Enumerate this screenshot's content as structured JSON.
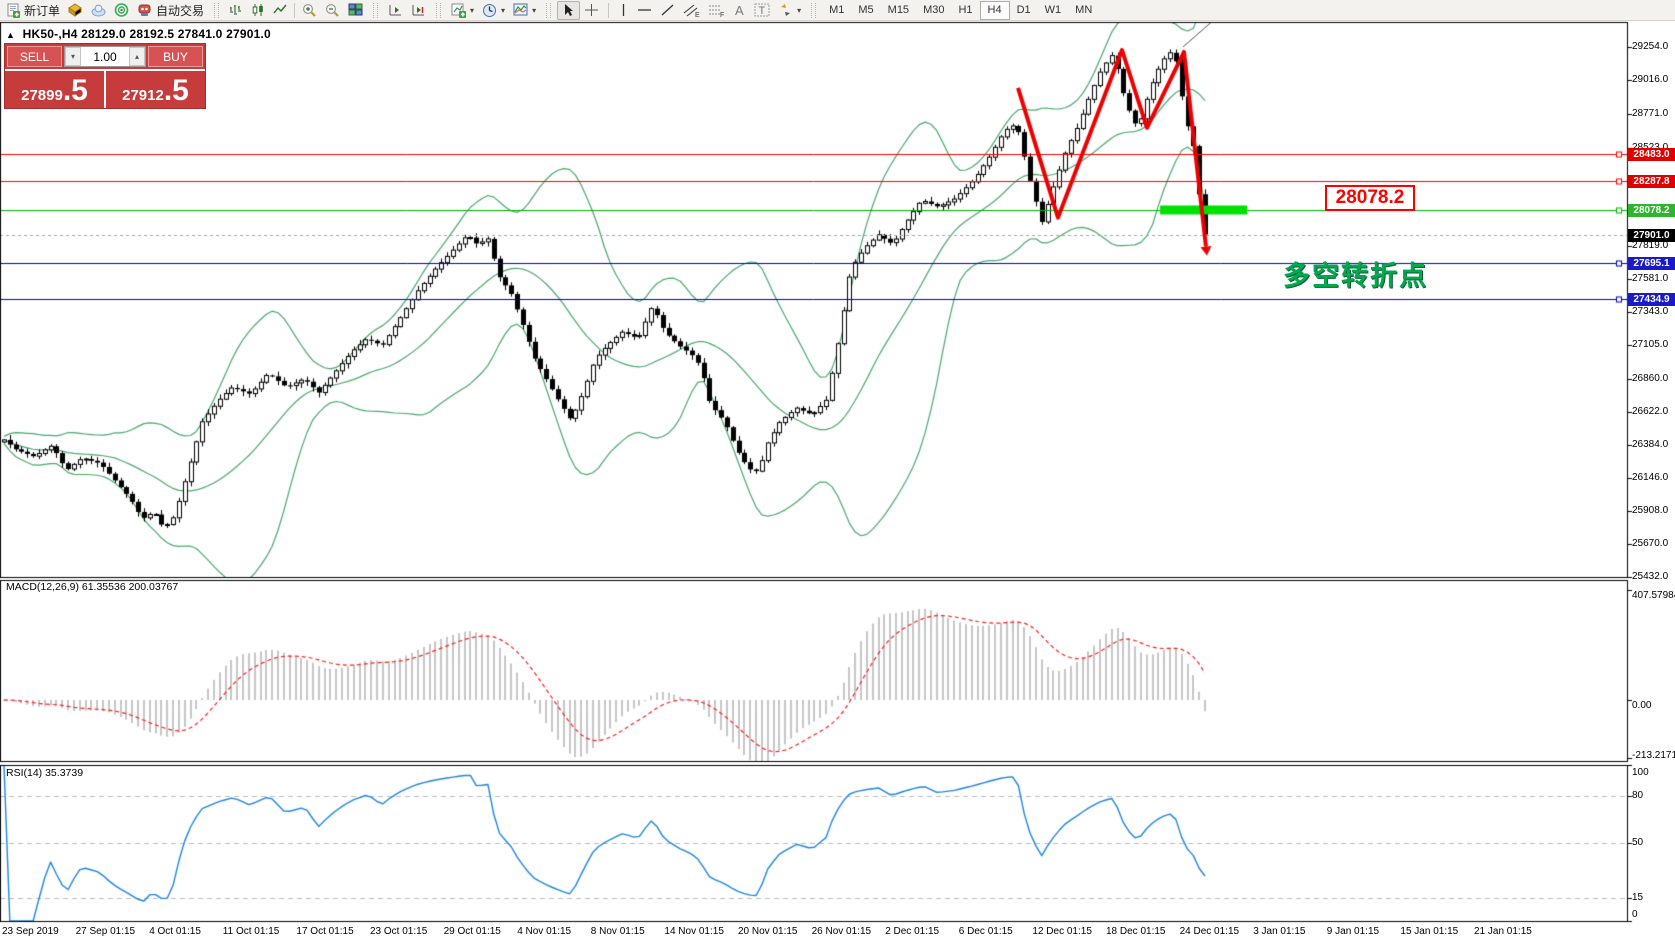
{
  "toolbar": {
    "new_order_label": "新订单",
    "algo_trading_label": "自动交易",
    "timeframes": [
      {
        "label": "M1"
      },
      {
        "label": "M5"
      },
      {
        "label": "M15"
      },
      {
        "label": "M30"
      },
      {
        "label": "H1"
      },
      {
        "label": "H4",
        "active": true
      },
      {
        "label": "D1"
      },
      {
        "label": "W1"
      },
      {
        "label": "MN"
      }
    ],
    "dropdown_glyph": "▾"
  },
  "chart_header": {
    "collapse_glyph": "▲",
    "symbol_period": "HK50-,H4",
    "ohlc_text": "28129.0 28192.5 27841.0 27901.0"
  },
  "trade_panel": {
    "sell_label": "SELL",
    "buy_label": "BUY",
    "volume": "1.00",
    "decrease_glyph": "▾",
    "increase_glyph": "▴",
    "bid_int": "27899",
    "bid_frac": ".5",
    "ask_int": "27912",
    "ask_frac": ".5"
  },
  "chart_data": {
    "type": "candlestick",
    "symbol": "HK50-",
    "period": "H4",
    "ohlc_current": {
      "open": 28129.0,
      "high": 28192.5,
      "low": 27841.0,
      "close": 27901.0
    },
    "price_axis": {
      "min": 25431,
      "max": 29434,
      "ticks": [
        29254.0,
        29016.0,
        28771.0,
        28523.0,
        28059.0,
        27819.0,
        27581.0,
        27343.0,
        27105.0,
        26860.0,
        26622.0,
        26384.0,
        26146.0,
        25908.0,
        25670.0,
        25432.0
      ]
    },
    "price_keyframes": [
      [
        0.0,
        26420
      ],
      [
        0.01,
        26350
      ],
      [
        0.025,
        26300
      ],
      [
        0.04,
        26380
      ],
      [
        0.052,
        26200
      ],
      [
        0.065,
        26290
      ],
      [
        0.08,
        26250
      ],
      [
        0.095,
        26100
      ],
      [
        0.105,
        26000
      ],
      [
        0.115,
        25850
      ],
      [
        0.125,
        25900
      ],
      [
        0.133,
        25780
      ],
      [
        0.142,
        25870
      ],
      [
        0.155,
        26250
      ],
      [
        0.165,
        26550
      ],
      [
        0.178,
        26700
      ],
      [
        0.19,
        26800
      ],
      [
        0.205,
        26750
      ],
      [
        0.22,
        26900
      ],
      [
        0.235,
        26800
      ],
      [
        0.25,
        26860
      ],
      [
        0.262,
        26760
      ],
      [
        0.275,
        26900
      ],
      [
        0.29,
        27060
      ],
      [
        0.302,
        27150
      ],
      [
        0.315,
        27100
      ],
      [
        0.33,
        27300
      ],
      [
        0.345,
        27500
      ],
      [
        0.36,
        27660
      ],
      [
        0.375,
        27800
      ],
      [
        0.386,
        27900
      ],
      [
        0.394,
        27830
      ],
      [
        0.403,
        27870
      ],
      [
        0.412,
        27600
      ],
      [
        0.422,
        27480
      ],
      [
        0.432,
        27250
      ],
      [
        0.442,
        27000
      ],
      [
        0.452,
        26850
      ],
      [
        0.462,
        26700
      ],
      [
        0.472,
        26560
      ],
      [
        0.482,
        26760
      ],
      [
        0.492,
        27000
      ],
      [
        0.502,
        27100
      ],
      [
        0.515,
        27200
      ],
      [
        0.528,
        27150
      ],
      [
        0.54,
        27390
      ],
      [
        0.55,
        27200
      ],
      [
        0.562,
        27100
      ],
      [
        0.572,
        27040
      ],
      [
        0.58,
        26950
      ],
      [
        0.588,
        26680
      ],
      [
        0.6,
        26550
      ],
      [
        0.61,
        26350
      ],
      [
        0.62,
        26210
      ],
      [
        0.628,
        26190
      ],
      [
        0.636,
        26400
      ],
      [
        0.646,
        26550
      ],
      [
        0.66,
        26650
      ],
      [
        0.673,
        26600
      ],
      [
        0.685,
        26710
      ],
      [
        0.695,
        27150
      ],
      [
        0.705,
        27650
      ],
      [
        0.716,
        27800
      ],
      [
        0.728,
        27900
      ],
      [
        0.74,
        27830
      ],
      [
        0.752,
        28000
      ],
      [
        0.764,
        28150
      ],
      [
        0.778,
        28100
      ],
      [
        0.792,
        28160
      ],
      [
        0.808,
        28300
      ],
      [
        0.822,
        28480
      ],
      [
        0.833,
        28650
      ],
      [
        0.843,
        28700
      ],
      [
        0.854,
        28300
      ],
      [
        0.864,
        27990
      ],
      [
        0.874,
        28250
      ],
      [
        0.884,
        28500
      ],
      [
        0.894,
        28680
      ],
      [
        0.904,
        28900
      ],
      [
        0.914,
        29100
      ],
      [
        0.924,
        29210
      ],
      [
        0.934,
        28850
      ],
      [
        0.944,
        28660
      ],
      [
        0.954,
        28950
      ],
      [
        0.964,
        29150
      ],
      [
        0.974,
        29240
      ],
      [
        0.984,
        28720
      ],
      [
        0.99,
        28560
      ],
      [
        0.995,
        28200
      ],
      [
        1.0,
        27901
      ]
    ],
    "levels": [
      {
        "price": 28483.0,
        "color": "#ff0000",
        "flag_bg": "#e00000"
      },
      {
        "price": 28287.8,
        "color": "#ff0000",
        "flag_bg": "#e00000"
      },
      {
        "price": 28078.2,
        "color": "#00b400",
        "flag_bg": "#2db52d"
      },
      {
        "price": 27695.1,
        "color": "#0000c8",
        "flag_bg": "#1a1ac8"
      },
      {
        "price": 27434.9,
        "color": "#0000c8",
        "flag_bg": "#1a1ac8"
      }
    ],
    "bid_line": {
      "price": 27901.0,
      "line_color": "#a8a8a8",
      "flag_bg": "#000000"
    },
    "candle_colors": {
      "up_fill": "#ffffff",
      "down_fill": "#000000",
      "outline": "#000000"
    },
    "indicators": {
      "bollinger": {
        "period": 20,
        "color": "#4aa96e"
      },
      "macd": {
        "label": "MACD(12,26,9) 61.35536 200.03767",
        "params": [
          12,
          26,
          9
        ],
        "value": 61.35536,
        "signal_value": 200.03767,
        "axis_labels": [
          "407.57984",
          "0.00",
          "-213.2171"
        ],
        "axis_values": [
          407.57984,
          0,
          -213.2171
        ],
        "ylim": [
          -226,
          444
        ],
        "hist_color": "#c6c6c6",
        "signal_color": "#ff2020"
      },
      "rsi": {
        "label": "RSI(14) 35.3739",
        "period": 14,
        "value": 35.3739,
        "axis_labels": [
          "100",
          "80",
          "50",
          "15",
          "0"
        ],
        "axis_values": [
          100,
          80,
          50,
          15,
          0
        ],
        "dashed_levels": [
          80,
          50,
          15
        ],
        "color": "#1f85e0",
        "level_color": "#bdbdbd"
      }
    },
    "time_axis": {
      "labels": [
        "23 Sep 2019",
        "27 Sep 01:15",
        "4 Oct 01:15",
        "11 Oct 01:15",
        "17 Oct 01:15",
        "23 Oct 01:15",
        "29 Oct 01:15",
        "4 Nov 01:15",
        "8 Nov 01:15",
        "14 Nov 01:15",
        "20 Nov 01:15",
        "26 Nov 01:15",
        "2 Dec 01:15",
        "6 Dec 01:15",
        "12 Dec 01:15",
        "18 Dec 01:15",
        "24 Dec 01:15",
        "3 Jan 01:15",
        "9 Jan 01:15",
        "15 Jan 01:15",
        "21 Jan 01:15"
      ]
    },
    "annotations": {
      "zigzag": {
        "color": "#ee0000",
        "width": 4,
        "points": [
          [
            0.8443,
            28959
          ],
          [
            0.8776,
            28023
          ],
          [
            0.9309,
            29232
          ],
          [
            0.9517,
            28671
          ],
          [
            0.9825,
            29218
          ],
          [
            1.0008,
            27814
          ]
        ]
      },
      "highlight_bar": {
        "t1": 0.9626,
        "t2": 1.035,
        "price": 28078.2,
        "color": "#00e100",
        "thickness": 9
      },
      "trendline_small": {
        "color": "#555555",
        "points": [
          [
            0.9817,
            29254
          ],
          [
            1.014,
            29500
          ]
        ]
      },
      "price_callout": {
        "text": "28078.2"
      },
      "turning_text": {
        "text": "多空转折点"
      }
    }
  }
}
